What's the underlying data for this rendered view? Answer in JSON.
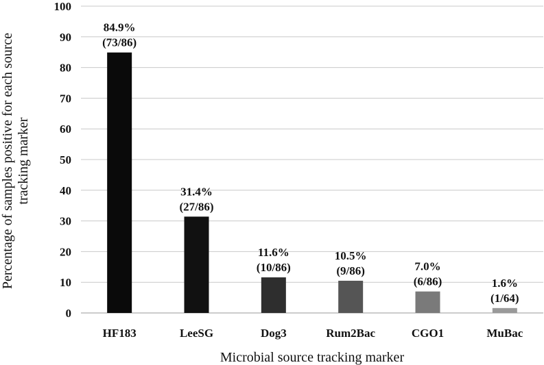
{
  "chart_data": {
    "type": "bar",
    "title": "",
    "xlabel": "Microbial source tracking marker",
    "ylabel_lines": [
      "Percentage of samples positive for each source",
      "tracking marker"
    ],
    "ylim": [
      0,
      100
    ],
    "yticks": [
      0,
      10,
      20,
      30,
      40,
      50,
      60,
      70,
      80,
      90,
      100
    ],
    "grid": true,
    "legend": "none",
    "categories": [
      "HF183",
      "LeeSG",
      "Dog3",
      "Rum2Bac",
      "CGO1",
      "MuBac"
    ],
    "values": [
      84.9,
      31.4,
      11.6,
      10.5,
      7.0,
      1.6
    ],
    "labels_pct": [
      "84.9%",
      "31.4%",
      "11.6%",
      "10.5%",
      "7.0%",
      "1.6%"
    ],
    "labels_frac": [
      "(73/86)",
      "(27/86)",
      "(10/86)",
      "(9/86)",
      "(6/86)",
      "(1/64)"
    ],
    "bar_colors": [
      "#0a0a0a",
      "#111111",
      "#2e2e2e",
      "#555555",
      "#7a7a7a",
      "#9a9a9a"
    ]
  }
}
